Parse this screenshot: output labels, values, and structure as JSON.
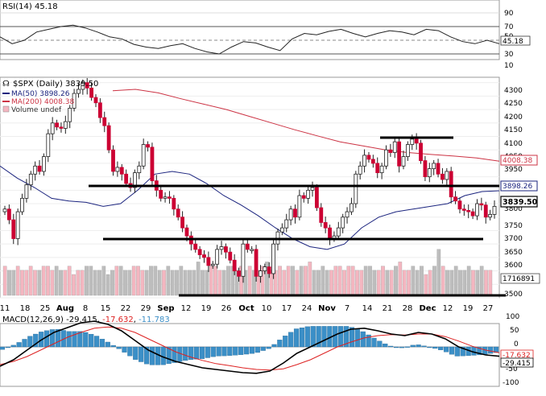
{
  "rsi_panel": {
    "label_prefix": "RSI(14)",
    "value": "45.18",
    "ticks": [
      "90",
      "70",
      "50",
      "30",
      "10"
    ],
    "current_value_badge": "45.18",
    "overbought": 70,
    "oversold": 30
  },
  "price_panel": {
    "legend": {
      "symbol_title": "$SPX (Daily) 3839.50",
      "ma50": "MA(50) 3898.26",
      "ma200": "MA(200) 4008.38",
      "volume": "Volume undef"
    },
    "y_ticks": [
      "4300",
      "4250",
      "4200",
      "4150",
      "4100",
      "4050",
      "4000",
      "3950",
      "3900",
      "3850",
      "3800",
      "3750",
      "3700",
      "3650",
      "3600",
      "3550",
      "3500"
    ],
    "badges": {
      "ma200": "4008.38",
      "ma50": "3898.26",
      "price": "3839.50",
      "volume": "1716891"
    },
    "horizontal_lines": [
      4100,
      3900,
      3700,
      3500
    ],
    "y_range": [
      3500,
      4320
    ]
  },
  "x_axis": {
    "labels": [
      "11",
      "18",
      "25",
      "Aug",
      "8",
      "15",
      "22",
      "29",
      "Sep",
      "12",
      "19",
      "26",
      "Oct",
      "10",
      "17",
      "24",
      "Nov",
      "7",
      "14",
      "21",
      "28",
      "Dec",
      "12",
      "19",
      "27"
    ],
    "bold_labels": [
      "Aug",
      "Sep",
      "Oct",
      "Nov",
      "Dec"
    ]
  },
  "macd_panel": {
    "label_prefix": "MACD(12,26,9)",
    "macd": "-29.415",
    "signal": "-17.632",
    "histogram": "-11.783",
    "ticks": [
      "100",
      "50",
      "0",
      "-50",
      "-100"
    ],
    "badges": {
      "signal": "-17.632",
      "macd": "-29.415"
    }
  },
  "colors": {
    "up_candle": "#ffffff",
    "down_candle": "#cc0033",
    "ma50": "#1a237e",
    "ma200": "#cc3344",
    "volume_up": "#f4b6c0",
    "volume_down": "#bdbdbd",
    "macd_line": "#000000",
    "signal_line": "#dd2222",
    "histogram": "#3b8fc7"
  },
  "chart_data": {
    "type": "line",
    "title": "$SPX (Daily) 3839.50",
    "series": [
      {
        "name": "$SPX (Daily)",
        "type": "candlestick",
        "values": [
          3830,
          3790,
          3720,
          3820,
          3870,
          3920,
          3960,
          3990,
          3970,
          4025,
          4110,
          4150,
          4135,
          4130,
          4155,
          4205,
          4260,
          4275,
          4300,
          4280,
          4245,
          4225,
          4170,
          4140,
          4050,
          3970,
          3985,
          3960,
          3925,
          3910,
          3965,
          3990,
          4070,
          4060,
          3935,
          3900,
          3870,
          3875,
          3870,
          3830,
          3800,
          3760,
          3730,
          3700,
          3680,
          3660,
          3650,
          3620,
          3625,
          3680,
          3690,
          3670,
          3640,
          3600,
          3580,
          3700,
          3680,
          3680,
          3580,
          3600,
          3615,
          3590,
          3700,
          3745,
          3760,
          3790,
          3830,
          3800,
          3880,
          3870,
          3900,
          3910,
          3835,
          3780,
          3760,
          3720,
          3730,
          3760,
          3800,
          3820,
          3850,
          3960,
          3990,
          4030,
          4015,
          4000,
          3965,
          3990,
          4050,
          4040,
          4080,
          3990,
          4025,
          4070,
          4090,
          4075,
          4010,
          3950,
          3980,
          4000,
          3960,
          3940,
          3970,
          3875,
          3860,
          3830,
          3825,
          3820,
          3805,
          3850,
          3845,
          3800,
          3810,
          3840
        ]
      },
      {
        "name": "MA(50)",
        "values": [
          3990,
          3945,
          3910,
          3870,
          3860,
          3855,
          3840,
          3850,
          3900,
          3960,
          3970,
          3960,
          3925,
          3880,
          3845,
          3805,
          3760,
          3720,
          3690,
          3680,
          3700,
          3760,
          3800,
          3820,
          3830,
          3840,
          3850,
          3880,
          3895,
          3898
        ]
      },
      {
        "name": "MA(200)",
        "values": [
          4270,
          4275,
          4262,
          4240,
          4220,
          4200,
          4175,
          4150,
          4125,
          4102,
          4080,
          4065,
          4050,
          4040,
          4033,
          4027,
          4020,
          4008
        ]
      },
      {
        "name": "Volume undef",
        "type": "bar",
        "values": [
          7,
          6,
          6,
          7,
          6,
          6,
          7,
          6,
          6,
          7,
          7,
          6,
          7,
          6,
          6,
          7,
          5,
          6,
          6,
          7,
          7,
          6,
          6,
          7,
          5,
          6,
          7,
          7,
          6,
          6,
          7,
          7,
          6,
          6,
          7,
          7,
          6,
          6,
          7,
          6,
          6,
          7,
          6,
          6,
          6,
          8,
          6,
          6,
          7,
          7,
          6,
          6,
          7,
          7,
          6,
          7,
          6,
          7,
          6,
          6,
          7,
          8,
          6,
          6,
          7,
          6,
          7,
          7,
          6,
          7,
          7,
          8,
          6,
          6,
          7,
          6,
          6,
          7,
          7,
          6,
          7,
          7,
          6,
          6,
          7,
          7,
          6,
          6,
          7,
          6,
          6,
          7,
          8,
          6,
          6,
          7,
          6,
          7,
          5,
          6,
          7,
          11,
          7,
          6,
          6,
          7,
          6,
          6,
          7,
          6,
          6,
          7,
          6,
          6
        ]
      },
      {
        "name": "RSI(14)",
        "values": [
          55,
          45,
          50,
          62,
          66,
          70,
          72,
          68,
          62,
          55,
          52,
          44,
          40,
          38,
          42,
          45,
          38,
          33,
          30,
          40,
          48,
          46,
          40,
          35,
          52,
          60,
          58,
          63,
          66,
          60,
          55,
          60,
          64,
          62,
          58,
          66,
          64,
          55,
          48,
          45,
          50,
          45
        ]
      },
      {
        "name": "MACD",
        "values": [
          -60,
          -40,
          -10,
          20,
          45,
          60,
          75,
          80,
          70,
          50,
          20,
          -10,
          -30,
          -45,
          -55,
          -65,
          -70,
          -75,
          -80,
          -82,
          -75,
          -50,
          -20,
          0,
          20,
          40,
          55,
          58,
          50,
          40,
          35,
          45,
          40,
          25,
          0,
          -15,
          -25,
          -29
        ]
      },
      {
        "name": "Signal",
        "values": [
          -55,
          -45,
          -30,
          -10,
          10,
          30,
          45,
          58,
          62,
          58,
          45,
          25,
          5,
          -15,
          -30,
          -42,
          -52,
          -58,
          -65,
          -70,
          -72,
          -68,
          -55,
          -40,
          -20,
          0,
          15,
          28,
          35,
          38,
          37,
          40,
          40,
          32,
          18,
          2,
          -10,
          -18
        ]
      }
    ],
    "ylim": [
      3500,
      4320
    ]
  }
}
